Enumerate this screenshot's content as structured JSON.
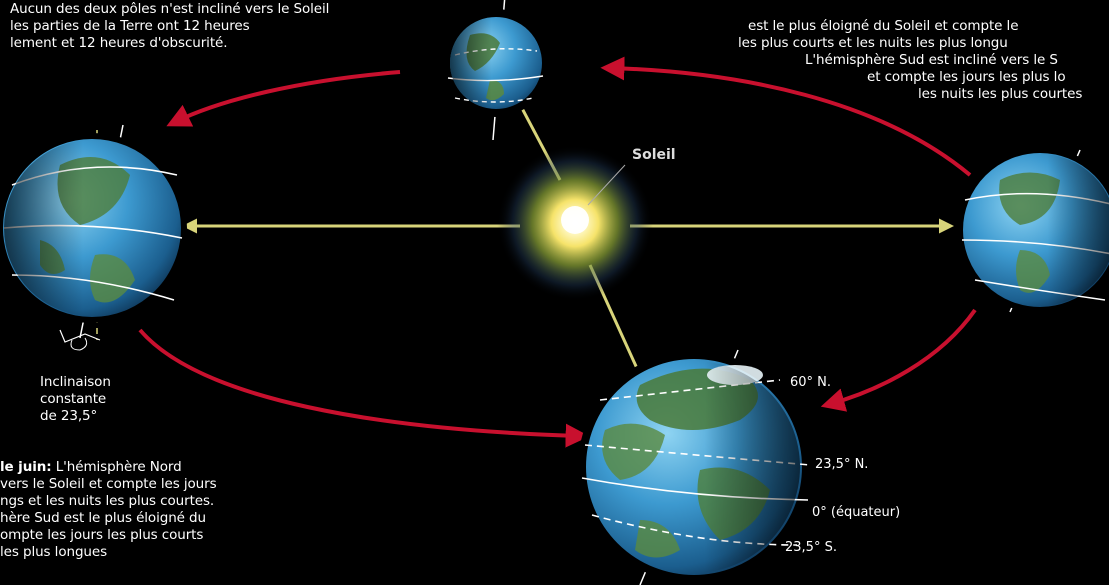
{
  "sun_label": "Soleil",
  "tilt_label": {
    "line1": "Inclinaison",
    "line2": "constante",
    "line3": "de 23,5°"
  },
  "lat_labels": {
    "lat60": "60° N.",
    "lat235n": "23,5° N.",
    "equator": "0° (équateur)",
    "lat235s": "23,5° S."
  },
  "top_left_text": {
    "line1": "Aucun des deux pôles n'est incliné vers le Soleil",
    "line2": "les parties de la Terre ont 12 heures",
    "line3": "lement et 12 heures d'obscurité."
  },
  "top_right_text": {
    "line1": "est le plus éloigné du Soleil et compte le",
    "line2": "les plus courts et les nuits les plus longu",
    "line3": "L'hémisphère Sud est incliné vers le S",
    "line4": "et compte les jours les plus lo",
    "line5": "les nuits les plus courtes"
  },
  "bottom_left_text": {
    "bold": "le juin:",
    "line1_rest": " L'hémisphère Nord",
    "line2": "vers le Soleil et compte les jours",
    "line3": "ngs et les nuits les plus courtes.",
    "line4": "hère Sud est le plus éloigné du",
    "line5": "ompte les jours les plus courts",
    "line6": "les plus longues"
  },
  "colors": {
    "background": "#000000",
    "orbit": "#c8102e",
    "axis_line": "#d8d47a",
    "sun_core": "#fff8c0"
  }
}
